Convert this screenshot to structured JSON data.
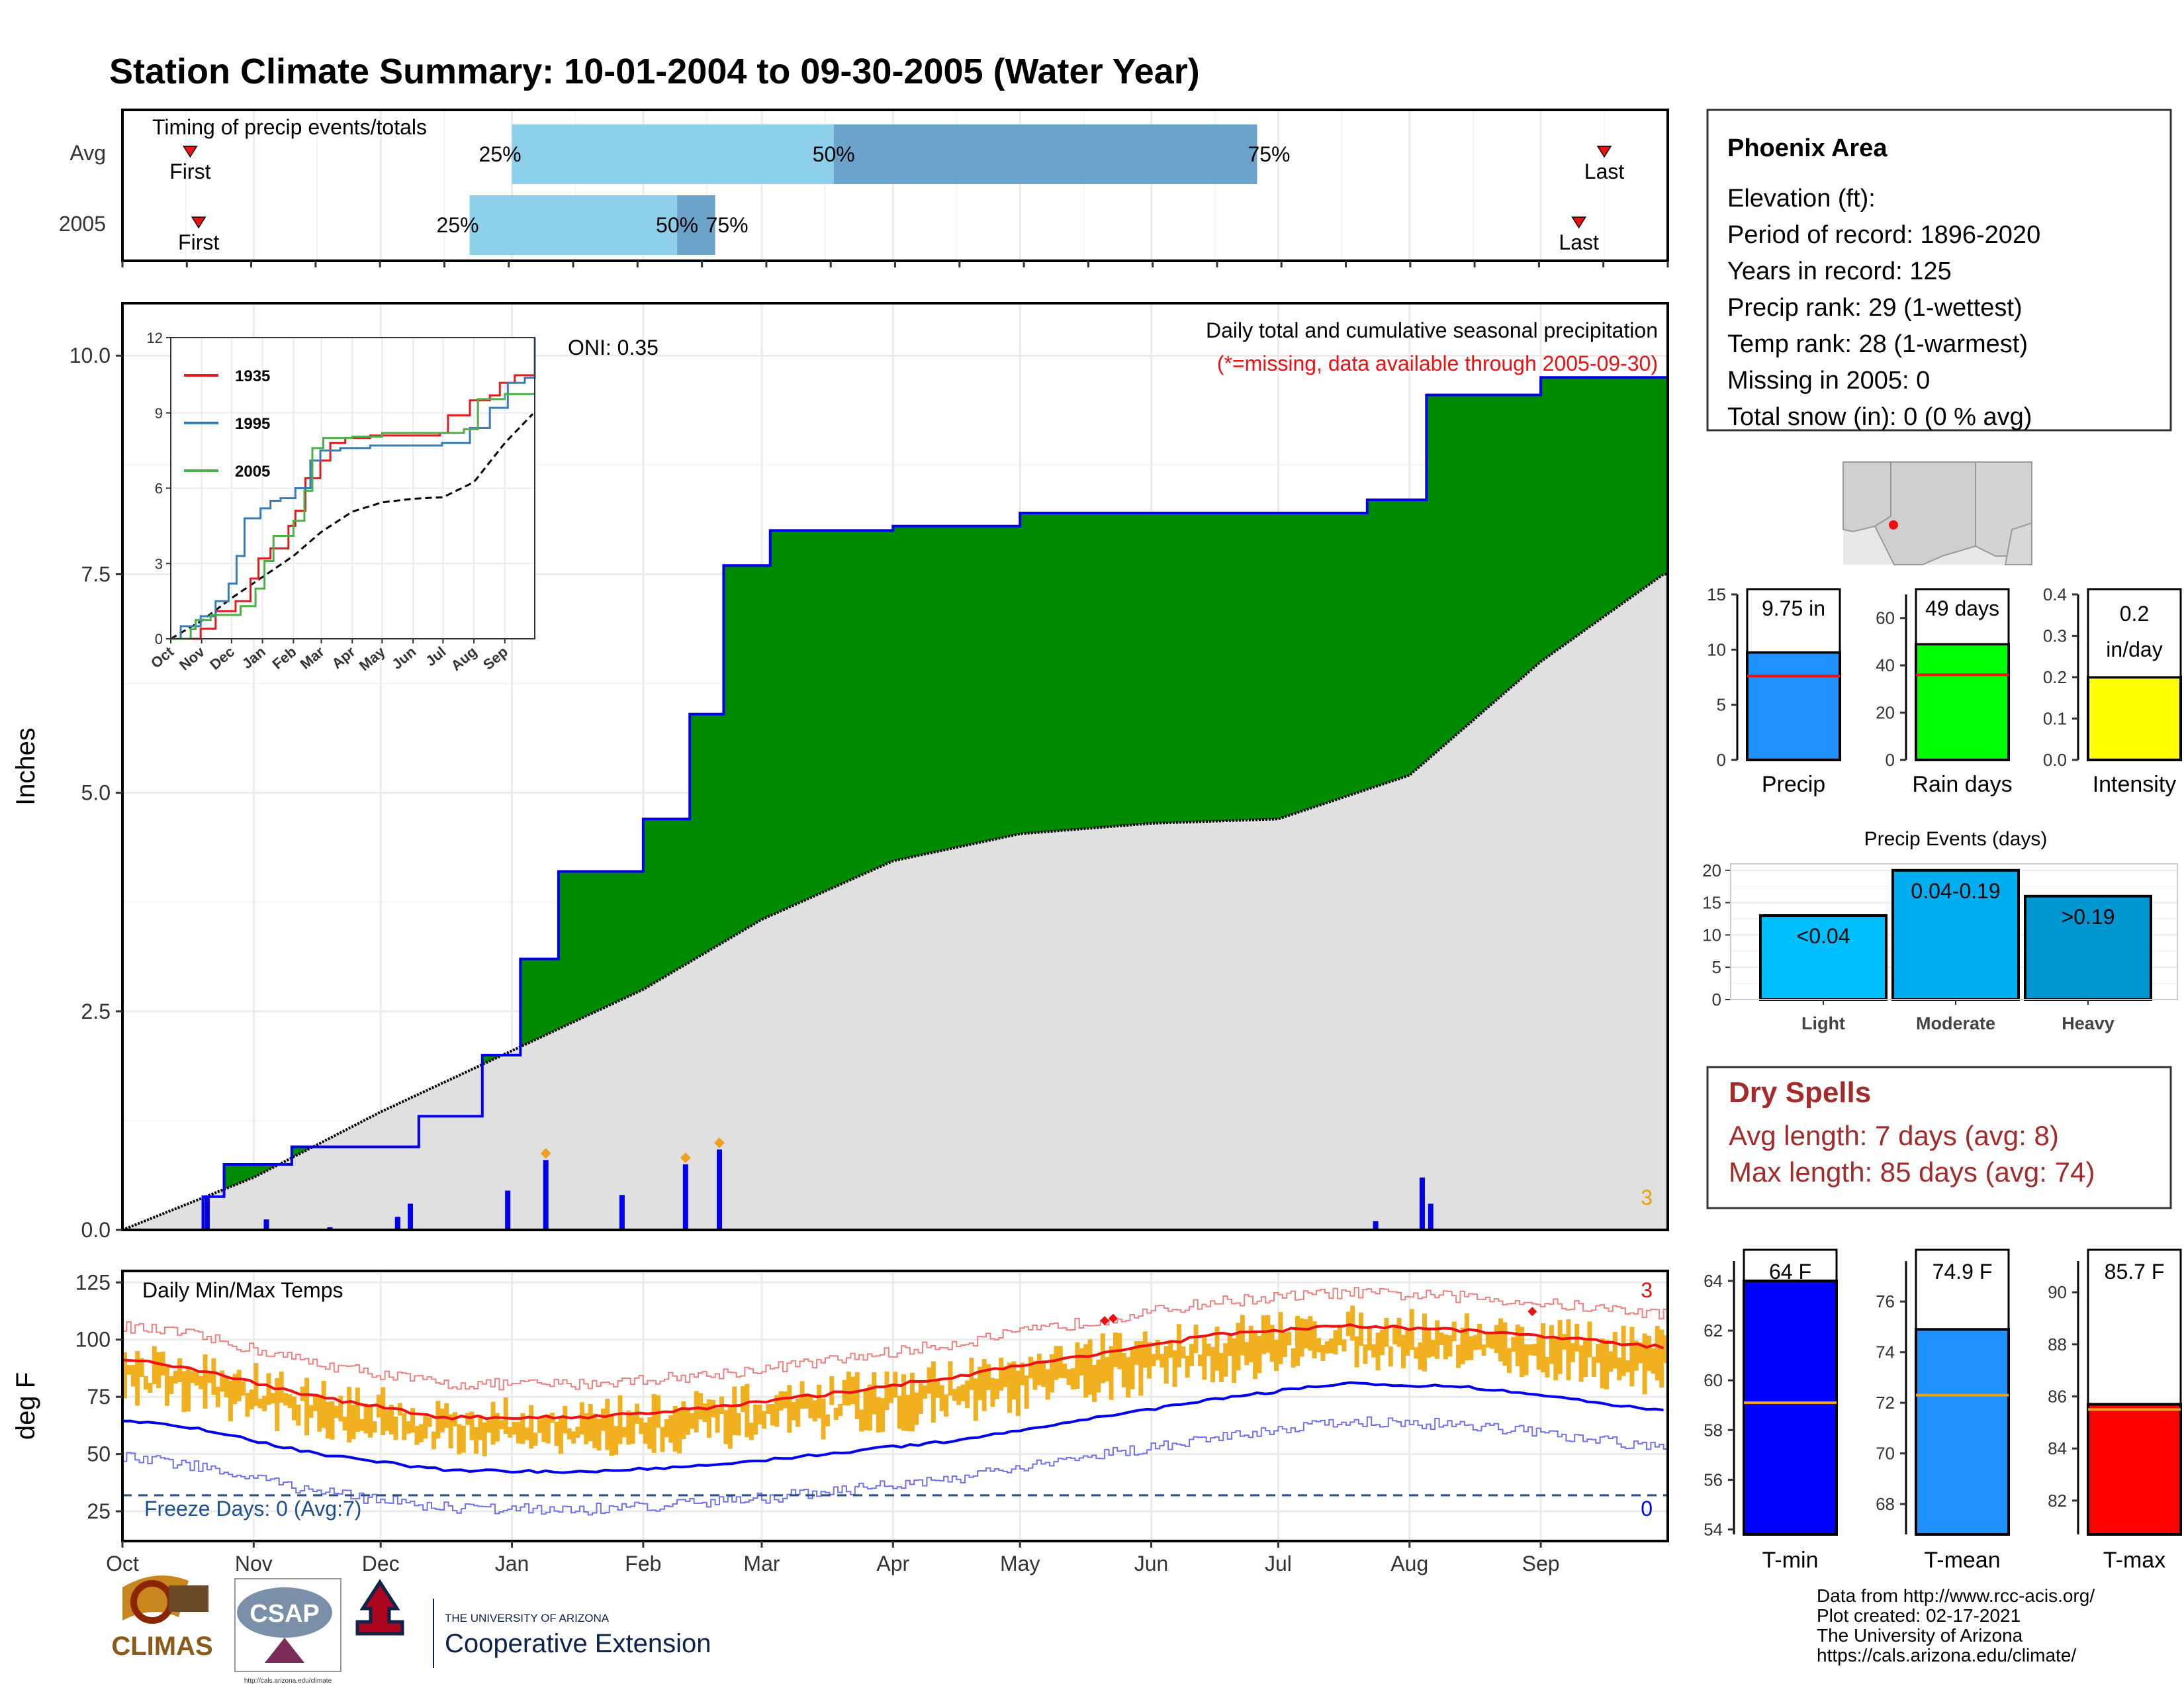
{
  "title": "Station Climate Summary: 10-01-2004 to 09-30-2005 (Water Year)",
  "colors": {
    "title": "#8B2500",
    "green": "#008A00",
    "gray_area": "#E0E0E0",
    "brown": "#8B5A1A",
    "blue_line": "#0000EE",
    "orange": "#F0B020",
    "red": "#EE1111",
    "q_light": "#8ECFEA",
    "q_dark": "#6BA3CB"
  },
  "timing": {
    "label": "Timing of precip events/totals",
    "rows": [
      {
        "name": "Avg",
        "first": "First",
        "last": "Last",
        "p25": "25%",
        "p50": "50%",
        "p75": "75%",
        "first_day": 16,
        "last_day": 350,
        "d25": 92,
        "d50": 168,
        "d75": 268
      },
      {
        "name": "2005",
        "first": "First",
        "last": "Last",
        "p25": "25%",
        "p50": "50%",
        "p75": "75%",
        "first_day": 18,
        "last_day": 344,
        "d25": 82,
        "d50": 131,
        "d75": 140
      }
    ]
  },
  "info": {
    "station": "Phoenix Area",
    "lines": [
      "Elevation (ft):",
      "Period of record: 1896-2020",
      "Years in record: 125",
      "Precip rank: 29 (1-wettest)",
      "Temp rank: 28 (1-warmest)",
      "Missing in 2005: 0",
      "Total snow (in): 0 (0 % avg)"
    ]
  },
  "precip": {
    "subtitle": "Daily total and cumulative seasonal precipitation",
    "missing_note": "(*=missing, data available through 2005-09-30)",
    "oni": "ONI: 0.35",
    "ylabel": "Inches",
    "yticks": [
      "0.0",
      "2.5",
      "5.0",
      "7.5",
      "10.0"
    ],
    "corner_count": "3"
  },
  "months": [
    "Oct",
    "Nov",
    "Dec",
    "Jan",
    "Feb",
    "Mar",
    "Apr",
    "May",
    "Jun",
    "Jul",
    "Aug",
    "Sep"
  ],
  "inset": {
    "yticks": [
      "0",
      "3",
      "6",
      "9",
      "12"
    ],
    "xticks": [
      "Oct",
      "Nov",
      "Dec",
      "Jan",
      "Feb",
      "Mar",
      "Apr",
      "May",
      "Jun",
      "Jul",
      "Aug",
      "Sep"
    ],
    "legend": [
      {
        "name": "1935",
        "color": "#E41A1C"
      },
      {
        "name": "1995",
        "color": "#377EB8"
      },
      {
        "name": "2005",
        "color": "#4DAF4A"
      }
    ]
  },
  "temps": {
    "label": "Daily Min/Max Temps",
    "ylabel": "deg F",
    "yticks": [
      "25",
      "50",
      "75",
      "100",
      "125"
    ],
    "freeze": "Freeze Days: 0 (Avg:7)",
    "count_max": "3",
    "count_min": "0"
  },
  "bars_small": [
    {
      "id": "precip",
      "caption": "Precip",
      "label": "9.75 in",
      "color": "#1E90FF",
      "yticks": [
        "0",
        "5",
        "10",
        "15"
      ],
      "ymin": 0,
      "ymax": 15,
      "value": 9.75,
      "avg": 7.6
    },
    {
      "id": "raindays",
      "caption": "Rain days",
      "label": "49 days",
      "color": "#00FF00",
      "yticks": [
        "0",
        "20",
        "40",
        "60"
      ],
      "ymin": 0,
      "ymax": 70,
      "value": 49,
      "avg": 36
    },
    {
      "id": "intensity",
      "caption": "Intensity",
      "label": "0.2",
      "label2": "in/day",
      "color": "#FFFF00",
      "yticks": [
        "0.0",
        "0.1",
        "0.2",
        "0.3",
        "0.4"
      ],
      "ymin": 0,
      "ymax": 0.4,
      "value": 0.2,
      "avg": 0.21
    }
  ],
  "events": {
    "title": "Precip Events (days)",
    "yticks": [
      "0",
      "5",
      "10",
      "15",
      "20"
    ],
    "bars": [
      {
        "cat": "Light",
        "label": "<0.04",
        "value": 13,
        "color": "#00BFFF"
      },
      {
        "cat": "Moderate",
        "label": "0.04-0.19",
        "value": 20,
        "color": "#00AEEF"
      },
      {
        "cat": "Heavy",
        "label": ">0.19",
        "value": 16,
        "color": "#0096D0"
      }
    ]
  },
  "dry": {
    "title": "Dry Spells",
    "avg": "Avg length: 7 days (avg: 8)",
    "max": "Max length: 85 days (avg: 74)"
  },
  "tbars": [
    {
      "caption": "T-min",
      "label": "64 F",
      "value": 64,
      "avg": 59.1,
      "color": "#0000FF",
      "ymin": 53.8,
      "ymax": 64.8,
      "ticks": [
        54,
        56,
        58,
        60,
        62,
        64
      ]
    },
    {
      "caption": "T-mean",
      "label": "74.9 F",
      "value": 74.9,
      "avg": 72.3,
      "color": "#1E90FF",
      "ymin": 66.8,
      "ymax": 77.6,
      "ticks": [
        68,
        70,
        72,
        74,
        76
      ]
    },
    {
      "caption": "T-max",
      "label": "85.7 F",
      "value": 85.7,
      "avg": 85.5,
      "color": "#FF0000",
      "ymin": 80.7,
      "ymax": 91.2,
      "ticks": [
        82,
        84,
        86,
        88,
        90
      ]
    }
  ],
  "credits": [
    "Data from http://www.rcc-acis.org/",
    "Plot created: 02-17-2021",
    "The University of Arizona",
    "https://cals.arizona.edu/climate/"
  ],
  "logos": {
    "climas": "CLIMAS",
    "csap": "CSAP",
    "csap_url": "http://cals.arizona.edu/climate",
    "ua_line1": "THE UNIVERSITY OF ARIZONA",
    "ua_line2": "Cooperative Extension"
  },
  "chart_data": {
    "type": "area",
    "title": "Station Climate Summary: 10-01-2004 to 09-30-2005 (Water Year)",
    "xlabel": "",
    "ylabel": "Inches",
    "ylim": [
      0,
      10.6
    ],
    "total_precip_in": 9.75,
    "cumulative_2005": [
      {
        "date": "2004-10-01",
        "in": 0.0
      },
      {
        "date": "2004-10-20",
        "in": 0.38
      },
      {
        "date": "2004-10-25",
        "in": 0.75
      },
      {
        "date": "2004-11-10",
        "in": 0.95
      },
      {
        "date": "2004-12-10",
        "in": 1.3
      },
      {
        "date": "2004-12-25",
        "in": 2.0
      },
      {
        "date": "2005-01-03",
        "in": 3.1
      },
      {
        "date": "2005-01-12",
        "in": 4.1
      },
      {
        "date": "2005-02-01",
        "in": 4.7
      },
      {
        "date": "2005-02-12",
        "in": 5.9
      },
      {
        "date": "2005-02-20",
        "in": 7.6
      },
      {
        "date": "2005-03-03",
        "in": 8.0
      },
      {
        "date": "2005-04-01",
        "in": 8.05
      },
      {
        "date": "2005-05-01",
        "in": 8.2
      },
      {
        "date": "2005-07-22",
        "in": 8.35
      },
      {
        "date": "2005-08-05",
        "in": 9.55
      },
      {
        "date": "2005-09-01",
        "in": 9.75
      },
      {
        "date": "2005-09-30",
        "in": 9.75
      }
    ],
    "cumulative_average": [
      {
        "date": "2004-10-01",
        "in": 0.0
      },
      {
        "date": "2004-11-01",
        "in": 0.6
      },
      {
        "date": "2004-12-01",
        "in": 1.35
      },
      {
        "date": "2005-01-01",
        "in": 2.05
      },
      {
        "date": "2005-02-01",
        "in": 2.75
      },
      {
        "date": "2005-03-01",
        "in": 3.55
      },
      {
        "date": "2005-04-01",
        "in": 4.22
      },
      {
        "date": "2005-05-01",
        "in": 4.53
      },
      {
        "date": "2005-06-01",
        "in": 4.65
      },
      {
        "date": "2005-07-01",
        "in": 4.7
      },
      {
        "date": "2005-08-01",
        "in": 5.2
      },
      {
        "date": "2005-09-01",
        "in": 6.5
      },
      {
        "date": "2005-09-30",
        "in": 7.5
      }
    ],
    "daily_precip_days": [
      {
        "date": "2004-10-21",
        "in": 0.38
      },
      {
        "date": "2004-11-04",
        "in": 0.12
      },
      {
        "date": "2004-11-19",
        "in": 0.03
      },
      {
        "date": "2004-12-05",
        "in": 0.15
      },
      {
        "date": "2004-12-08",
        "in": 0.3
      },
      {
        "date": "2004-12-31",
        "in": 0.45
      },
      {
        "date": "2005-01-09",
        "in": 0.8
      },
      {
        "date": "2005-01-27",
        "in": 0.4
      },
      {
        "date": "2005-02-11",
        "in": 0.75
      },
      {
        "date": "2005-02-19",
        "in": 0.92
      },
      {
        "date": "2005-07-24",
        "in": 0.1
      },
      {
        "date": "2005-08-04",
        "in": 0.6
      },
      {
        "date": "2005-08-06",
        "in": 0.3
      }
    ],
    "temps_series": {
      "avg_max_F": [
        {
          "month": "Oct",
          "value": 88
        },
        {
          "month": "Nov",
          "value": 75
        },
        {
          "month": "Dec",
          "value": 66
        },
        {
          "month": "Jan",
          "value": 66
        },
        {
          "month": "Feb",
          "value": 70
        },
        {
          "month": "Mar",
          "value": 76
        },
        {
          "month": "Apr",
          "value": 84
        },
        {
          "month": "May",
          "value": 93
        },
        {
          "month": "Jun",
          "value": 102
        },
        {
          "month": "Jul",
          "value": 106
        },
        {
          "month": "Aug",
          "value": 104
        },
        {
          "month": "Sep",
          "value": 99
        }
      ],
      "avg_min_F": [
        {
          "month": "Oct",
          "value": 62
        },
        {
          "month": "Nov",
          "value": 50
        },
        {
          "month": "Dec",
          "value": 43
        },
        {
          "month": "Jan",
          "value": 42
        },
        {
          "month": "Feb",
          "value": 45
        },
        {
          "month": "Mar",
          "value": 50
        },
        {
          "month": "Apr",
          "value": 56
        },
        {
          "month": "May",
          "value": 65
        },
        {
          "month": "Jun",
          "value": 74
        },
        {
          "month": "Jul",
          "value": 81
        },
        {
          "month": "Aug",
          "value": 79
        },
        {
          "month": "Sep",
          "value": 72
        }
      ],
      "freeze_line_F": 32
    }
  }
}
